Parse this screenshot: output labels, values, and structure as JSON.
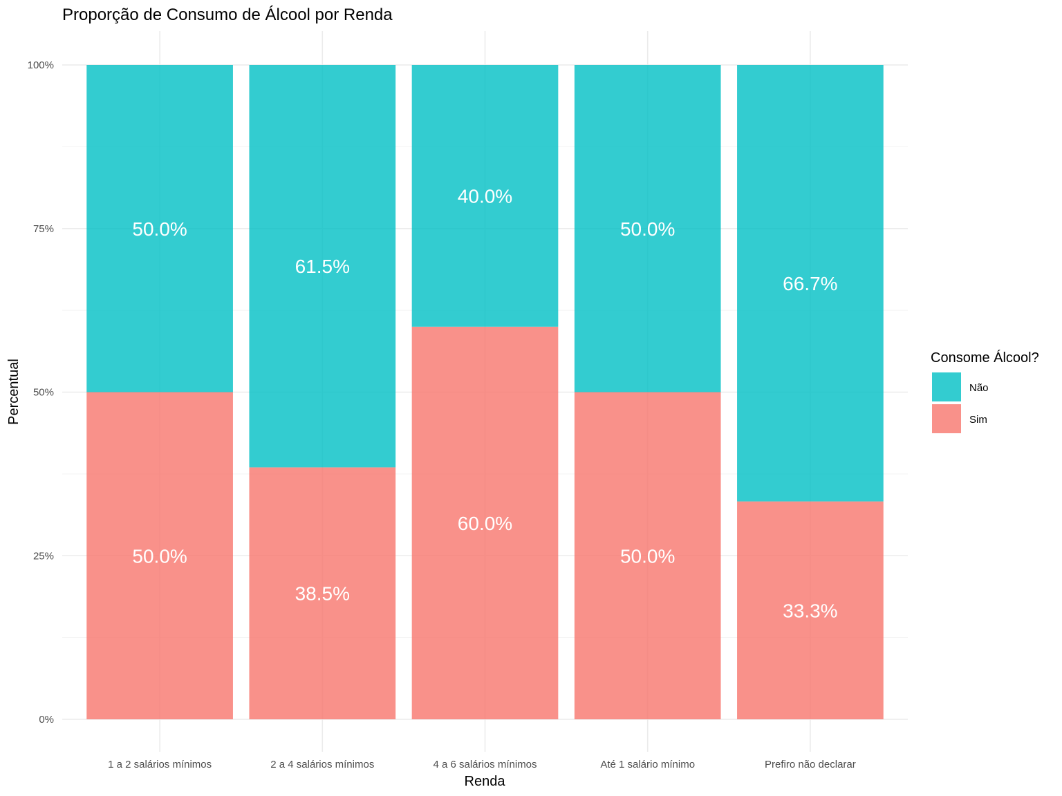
{
  "chart_data": {
    "type": "bar",
    "stacked": true,
    "title": "Proporção de Consumo de Álcool por Renda",
    "xlabel": "Renda",
    "ylabel": "Percentual",
    "ylim": [
      0,
      1
    ],
    "y_ticks": [
      {
        "value": 0,
        "label": "0%"
      },
      {
        "value": 0.25,
        "label": "25%"
      },
      {
        "value": 0.5,
        "label": "50%"
      },
      {
        "value": 0.75,
        "label": "75%"
      },
      {
        "value": 1,
        "label": "100%"
      }
    ],
    "categories": [
      "1 a 2 salários mínimos",
      "2 a 4 salários mínimos",
      "4 a 6 salários mínimos",
      "Até 1 salário mínimo",
      "Prefiro não declarar"
    ],
    "series": [
      {
        "name": "Sim",
        "color": "#F8766D",
        "values": [
          0.5,
          0.385,
          0.6,
          0.5,
          0.333
        ],
        "labels": [
          "50.0%",
          "38.5%",
          "60.0%",
          "50.0%",
          "33.3%"
        ]
      },
      {
        "name": "Não",
        "color": "#00BFC4",
        "values": [
          0.5,
          0.615,
          0.4,
          0.5,
          0.667
        ],
        "labels": [
          "50.0%",
          "61.5%",
          "40.0%",
          "50.0%",
          "66.7%"
        ]
      }
    ],
    "legend": {
      "title": "Consome Álcool?",
      "placement": "right",
      "items": [
        {
          "label": "Não",
          "color": "#00BFC4"
        },
        {
          "label": "Sim",
          "color": "#F8766D"
        }
      ]
    },
    "grid": true
  }
}
